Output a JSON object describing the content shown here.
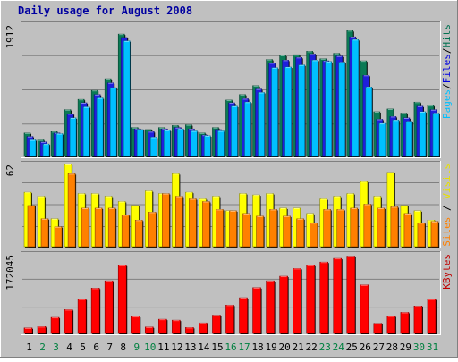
{
  "chart_data": {
    "type": "bar",
    "title": "Daily usage for August 2008",
    "categories": [
      "1",
      "2",
      "3",
      "4",
      "5",
      "6",
      "7",
      "8",
      "9",
      "10",
      "11",
      "12",
      "13",
      "14",
      "15",
      "16",
      "17",
      "18",
      "19",
      "20",
      "21",
      "22",
      "23",
      "24",
      "25",
      "26",
      "27",
      "28",
      "29",
      "30",
      "31"
    ],
    "weekend_days": [
      "2",
      "3",
      "9",
      "10",
      "16",
      "17",
      "23",
      "24",
      "30",
      "31"
    ],
    "panels": [
      {
        "name": "hits-files-pages",
        "max_label": "1912",
        "ylim": [
          0,
          1912
        ],
        "right_label": [
          "Pages",
          "/",
          "Files",
          "/",
          "Hits"
        ],
        "right_label_colors": [
          "#00c0ff",
          "#000000",
          "#0000e0",
          "#000000",
          "#007050"
        ],
        "series": [
          {
            "name": "Hits",
            "color": "#0a7a55",
            "values": [
              340,
              240,
              360,
              680,
              830,
              960,
              1130,
              1780,
              420,
              390,
              420,
              450,
              460,
              340,
              420,
              820,
              900,
              1030,
              1410,
              1470,
              1480,
              1530,
              1420,
              1500,
              1830,
              1390,
              650,
              690,
              630,
              790,
              740
            ]
          },
          {
            "name": "Files",
            "color": "#1f1fdc",
            "values": [
              290,
              210,
              340,
              620,
              780,
              900,
              1070,
              1730,
              400,
              360,
              400,
              420,
              400,
              310,
              390,
              780,
              840,
              980,
              1360,
              1400,
              1440,
              1490,
              1390,
              1460,
              1740,
              1180,
              540,
              580,
              560,
              730,
              680
            ]
          },
          {
            "name": "Pages",
            "color": "#00c0ff",
            "values": [
              240,
              180,
              330,
              560,
              720,
              850,
              1000,
              1680,
              390,
              280,
              380,
              400,
              370,
              300,
              370,
              730,
              790,
              930,
              1290,
              1300,
              1330,
              1400,
              1380,
              1370,
              1700,
              1010,
              480,
              530,
              510,
              650,
              630
            ]
          }
        ]
      },
      {
        "name": "visits-sites",
        "max_label": "62",
        "ylim": [
          0,
          62
        ],
        "right_label": [
          "Sites",
          " / ",
          "Visits"
        ],
        "right_label_colors": [
          "#ff8000",
          "#000000",
          "#e8e000"
        ],
        "series": [
          {
            "name": "Visits",
            "color": "#ffff00",
            "values": [
              41,
              38,
              21,
              62,
              40,
              40,
              38,
              34,
              31,
              42,
              40,
              55,
              41,
              36,
              38,
              27,
              40,
              39,
              40,
              29,
              29,
              25,
              36,
              38,
              40,
              49,
              38,
              56,
              31,
              27,
              20
            ]
          },
          {
            "name": "Sites",
            "color": "#ff8000",
            "values": [
              31,
              21,
              15,
              55,
              29,
              29,
              29,
              24,
              20,
              26,
              40,
              38,
              36,
              34,
              28,
              27,
              25,
              23,
              28,
              23,
              21,
              18,
              28,
              28,
              29,
              32,
              29,
              30,
              25,
              18,
              19
            ]
          }
        ]
      },
      {
        "name": "kbytes",
        "max_label": "172045",
        "ylim": [
          0,
          172045
        ],
        "right_label": [
          "KBytes"
        ],
        "right_label_colors": [
          "#c00000"
        ],
        "series": [
          {
            "name": "KBytes",
            "color": "#ff0000",
            "values": [
              12000,
              15000,
              35000,
              52000,
              75000,
              99000,
              115000,
              149000,
              37000,
              14000,
              31000,
              29000,
              13000,
              23000,
              40000,
              62000,
              78000,
              100000,
              115000,
              125000,
              142000,
              149000,
              156000,
              164000,
              169000,
              106000,
              22000,
              38000,
              46000,
              60000,
              75000
            ]
          }
        ]
      }
    ]
  }
}
